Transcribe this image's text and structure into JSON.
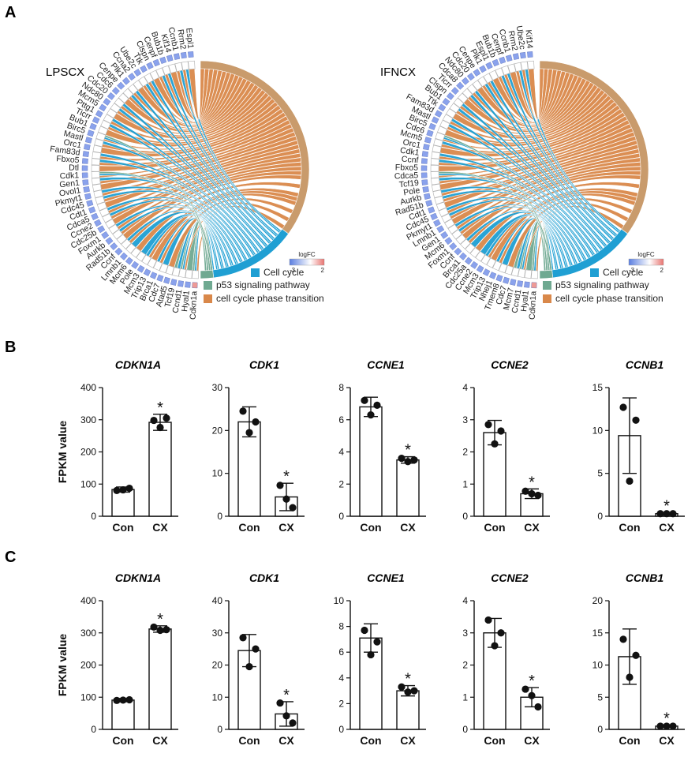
{
  "panel_labels": {
    "a": "A",
    "b": "B",
    "c": "C"
  },
  "colors": {
    "cell_cycle": "#1f9fd3",
    "p53": "#6fa991",
    "phase_transition": "#d9884a",
    "phase_outer": "#c99b6c",
    "logfc_low": "#5a7ee0",
    "logfc_high": "#e8736f",
    "gene_box_down": "#8aa2ec",
    "gene_box_up": "#ee9a96"
  },
  "chord_panels": [
    {
      "title": "LPSCX",
      "genes": [
        "Cdkn1a",
        "Hyal1",
        "Ccnd1",
        "Tcf19",
        "Atad5",
        "Cdc7",
        "Brca1",
        "Trip13",
        "Mcm3",
        "Pole",
        "Mcm6",
        "Lmnb1",
        "Ccnf",
        "Rad51b",
        "Aurkb",
        "Foxm1",
        "Cdc25b",
        "Ccne2",
        "Cdca5",
        "Cdt1",
        "Cdc45",
        "Pkmyt1",
        "Ovol1",
        "Gen1",
        "Cdk1",
        "Dtl",
        "Fbxo5",
        "Fam83d",
        "Orc1",
        "Mastl",
        "Birc5",
        "Bub1",
        "Ticrr",
        "Pttg1",
        "Mcm5",
        "Ndc80",
        "Cdc20",
        "Cdc6",
        "Cenpe",
        "Plk1",
        "Ccna2",
        "Ube2c",
        "Ttk",
        "Clspn",
        "Cenpf",
        "Bub1b",
        "Kif14",
        "Ccnb1",
        "Rrm2",
        "Espl1"
      ],
      "legend": [
        "Cell cycle",
        "p53 signaling pathway",
        "cell cycle phase transition"
      ],
      "logfc_title": "logFC",
      "logfc_min": "-3",
      "logfc_max": "2"
    },
    {
      "title": "IFNCX",
      "genes": [
        "Cdkn1a",
        "Hyal1",
        "Ccnd1",
        "Mcm7",
        "Cdc7",
        "Tmem8",
        "Nhej1",
        "Trip13",
        "Mcm3",
        "Ccne2",
        "Cdc25a",
        "Brca1",
        "Ccnf",
        "Foxm1",
        "Mcm6",
        "Gen1",
        "Lmnb1",
        "Pkmyt1",
        "Cdc45",
        "Cdt1",
        "Rad51b",
        "Aurkb",
        "Pole",
        "Tcf19",
        "Cdca5",
        "Fbxo5",
        "Ccnf",
        "Cdk1",
        "Orc1",
        "Mcm5",
        "Cdc6",
        "Birc5",
        "Mastl",
        "Fam83d",
        "Ttk",
        "Bub1",
        "Clspn",
        "Ticrr",
        "Cdca8",
        "Ndc80",
        "Cdc20",
        "Cenpe",
        "Plk1",
        "Espl1",
        "Bub1b",
        "Cenpf",
        "Ccnb1",
        "Rrm2",
        "Ube2c",
        "Kif14"
      ],
      "legend": [
        "Cell cycle",
        "p53 signaling pathway",
        "cell cycle phase transition"
      ],
      "logfc_title": "logFC",
      "logfc_min": "-3",
      "logfc_max": "2"
    }
  ],
  "chart_data": [
    {
      "panel": "B",
      "type": "bar",
      "title": "CDKN1A",
      "ylabel": "FPKM value",
      "categories": [
        "Con",
        "CX"
      ],
      "ylim": [
        0,
        400
      ],
      "yticks": [
        0,
        100,
        200,
        300,
        400
      ],
      "values": [
        83,
        292
      ],
      "errors": [
        8,
        25
      ],
      "points": [
        [
          80,
          87,
          82
        ],
        [
          298,
          305,
          276
        ]
      ],
      "significant": [
        false,
        true
      ],
      "sig_marker": "*"
    },
    {
      "panel": "B",
      "type": "bar",
      "title": "CDK1",
      "ylabel": "",
      "categories": [
        "Con",
        "CX"
      ],
      "ylim": [
        0,
        30
      ],
      "yticks": [
        0,
        10,
        20,
        30
      ],
      "values": [
        22,
        4.5
      ],
      "errors": [
        3.5,
        3.2
      ],
      "points": [
        [
          24.5,
          22,
          19.5
        ],
        [
          7.2,
          2,
          4
        ]
      ],
      "significant": [
        false,
        true
      ],
      "sig_marker": "*"
    },
    {
      "panel": "B",
      "type": "bar",
      "title": "CCNE1",
      "ylabel": "",
      "categories": [
        "Con",
        "CX"
      ],
      "ylim": [
        0,
        8
      ],
      "yticks": [
        0,
        2,
        4,
        6,
        8
      ],
      "ytick_decimals": 0,
      "values": [
        6.8,
        3.5
      ],
      "errors": [
        0.6,
        0.2
      ],
      "points": [
        [
          7.2,
          6.9,
          6.3
        ],
        [
          3.6,
          3.5,
          3.4
        ]
      ],
      "significant": [
        false,
        true
      ],
      "sig_marker": "*"
    },
    {
      "panel": "B",
      "type": "bar",
      "title": "CCNE2",
      "ylabel": "",
      "categories": [
        "Con",
        "CX"
      ],
      "ylim": [
        0,
        4
      ],
      "yticks": [
        0,
        1,
        2,
        3,
        4
      ],
      "values": [
        2.6,
        0.7
      ],
      "errors": [
        0.38,
        0.15
      ],
      "points": [
        [
          2.85,
          2.65,
          2.25
        ],
        [
          0.78,
          0.65,
          0.7
        ]
      ],
      "significant": [
        false,
        true
      ],
      "sig_marker": "*"
    },
    {
      "panel": "B",
      "type": "bar",
      "title": "CCNB1",
      "ylabel": "",
      "categories": [
        "Con",
        "CX"
      ],
      "ylim": [
        0,
        15
      ],
      "yticks": [
        0,
        5,
        10,
        15
      ],
      "values": [
        9.4,
        0.3
      ],
      "errors": [
        4.4,
        0.1
      ],
      "points": [
        [
          12.7,
          11.2,
          4.1
        ],
        [
          0.3,
          0.3,
          0.3
        ]
      ],
      "significant": [
        false,
        true
      ],
      "sig_marker": "*"
    },
    {
      "panel": "C",
      "type": "bar",
      "title": "CDKN1A",
      "ylabel": "FPKM value",
      "categories": [
        "Con",
        "CX"
      ],
      "ylim": [
        0,
        400
      ],
      "yticks": [
        0,
        100,
        200,
        300,
        400
      ],
      "values": [
        91,
        312
      ],
      "errors": [
        5,
        10
      ],
      "points": [
        [
          90,
          92,
          91
        ],
        [
          318,
          310,
          308
        ]
      ],
      "significant": [
        false,
        true
      ],
      "sig_marker": "*"
    },
    {
      "panel": "C",
      "type": "bar",
      "title": "CDK1",
      "ylabel": "",
      "categories": [
        "Con",
        "CX"
      ],
      "ylim": [
        0,
        40
      ],
      "yticks": [
        0,
        10,
        20,
        30,
        40
      ],
      "values": [
        24.5,
        4.8
      ],
      "errors": [
        5,
        3.8
      ],
      "points": [
        [
          28.5,
          25,
          19.5
        ],
        [
          8.2,
          2,
          4.2
        ]
      ],
      "significant": [
        false,
        true
      ],
      "sig_marker": "*"
    },
    {
      "panel": "C",
      "type": "bar",
      "title": "CCNE1",
      "ylabel": "",
      "categories": [
        "Con",
        "CX"
      ],
      "ylim": [
        0,
        10
      ],
      "yticks": [
        0,
        2,
        4,
        6,
        8,
        10
      ],
      "values": [
        7.1,
        3.0
      ],
      "errors": [
        1.1,
        0.4
      ],
      "points": [
        [
          7.7,
          6.8,
          5.8
        ],
        [
          3.3,
          3.0,
          2.9
        ]
      ],
      "significant": [
        false,
        true
      ],
      "sig_marker": "*"
    },
    {
      "panel": "C",
      "type": "bar",
      "title": "CCNE2",
      "ylabel": "",
      "categories": [
        "Con",
        "CX"
      ],
      "ylim": [
        0,
        4
      ],
      "yticks": [
        0,
        1,
        2,
        3,
        4
      ],
      "values": [
        3.0,
        1.0
      ],
      "errors": [
        0.45,
        0.3
      ],
      "points": [
        [
          3.4,
          3.0,
          2.6
        ],
        [
          1.25,
          0.7,
          1.05
        ]
      ],
      "significant": [
        false,
        true
      ],
      "sig_marker": "*"
    },
    {
      "panel": "C",
      "type": "bar",
      "title": "CCNB1",
      "ylabel": "",
      "categories": [
        "Con",
        "CX"
      ],
      "ylim": [
        0,
        20
      ],
      "yticks": [
        0,
        5,
        10,
        15,
        20
      ],
      "values": [
        11.3,
        0.5
      ],
      "errors": [
        4.3,
        0.15
      ],
      "points": [
        [
          14,
          11.5,
          8.1
        ],
        [
          0.5,
          0.5,
          0.5
        ]
      ],
      "significant": [
        false,
        true
      ],
      "sig_marker": "*"
    }
  ]
}
